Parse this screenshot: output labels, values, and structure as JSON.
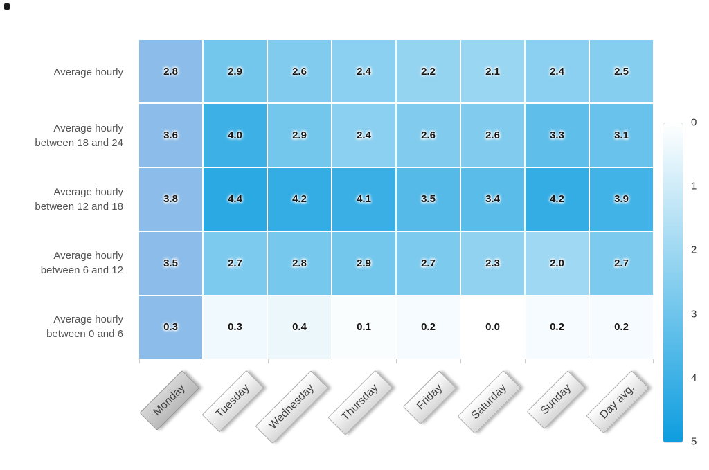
{
  "chart_data": {
    "type": "heatmap",
    "columns": [
      "Monday",
      "Tuesday",
      "Wednesday",
      "Thursday",
      "Friday",
      "Saturday",
      "Sunday",
      "Day avg."
    ],
    "rows": [
      {
        "label_lines": [
          "Average hourly"
        ],
        "values": [
          2.8,
          2.9,
          2.6,
          2.4,
          2.2,
          2.1,
          2.4,
          2.5
        ]
      },
      {
        "label_lines": [
          "Average hourly",
          "between 18 and 24"
        ],
        "values": [
          3.6,
          4.0,
          2.9,
          2.4,
          2.6,
          2.6,
          3.3,
          3.1
        ]
      },
      {
        "label_lines": [
          "Average hourly",
          "between 12 and 18"
        ],
        "values": [
          3.8,
          4.4,
          4.2,
          4.1,
          3.5,
          3.4,
          4.2,
          3.9
        ]
      },
      {
        "label_lines": [
          "Average hourly",
          "between 6 and 12"
        ],
        "values": [
          3.5,
          2.7,
          2.8,
          2.9,
          2.7,
          2.3,
          2.0,
          2.7
        ]
      },
      {
        "label_lines": [
          "Average hourly",
          "between 0 and 6"
        ],
        "values": [
          0.3,
          0.3,
          0.4,
          0.1,
          0.2,
          0.0,
          0.2,
          0.2
        ]
      }
    ],
    "color_scale": {
      "min": 0,
      "max": 5,
      "min_color": "#ffffff",
      "max_color": "#0d9ddf"
    },
    "legend": {
      "position": "right",
      "ticks": [
        "0",
        "1",
        "2",
        "3",
        "4",
        "5"
      ]
    },
    "highlighted_column": "Monday",
    "highlight_color": "#8cbce9",
    "value_decimals": 1
  }
}
